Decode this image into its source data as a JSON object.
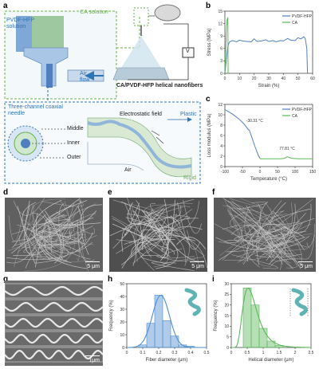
{
  "panel_letters": {
    "a": "a",
    "b": "b",
    "c": "c",
    "d": "d",
    "e": "e",
    "f": "f",
    "g": "g",
    "h": "h",
    "i": "i"
  },
  "panel_a": {
    "pvdf_label": "PVDF-HFP solution",
    "ca_label": "CA solution",
    "air_flow_label": "Air flow",
    "fiber_label": "CA/PVDF-HFP helical nanofibers",
    "voltage_label": "V",
    "needle_label": "Three-channel coaxial needle",
    "middle_label": "Middle",
    "inner_label": "Inner",
    "outer_label": "Outer",
    "field_label": "Electrostatic field",
    "plastic_label": "Plastic",
    "rigid_label": "Rigid",
    "air_label": "Air"
  },
  "colors": {
    "pvdf": "#4f7fc0",
    "ca": "#5db85d",
    "dashed_green": "#6ab04c",
    "dashed_blue": "#2e75b6"
  },
  "scalebars": {
    "d": "5 μm",
    "e": "5 μm",
    "f": "5 μm",
    "g": "1μm"
  },
  "chart_data": [
    {
      "id": "b",
      "type": "line",
      "xlabel": "Strain (%)",
      "ylabel": "Stress (MPa)",
      "xlim": [
        0,
        60
      ],
      "ylim": [
        0,
        15
      ],
      "xticks": [
        0,
        10,
        20,
        30,
        40,
        50,
        60
      ],
      "yticks": [
        0,
        3,
        6,
        9,
        12,
        15
      ],
      "legend": "top-right",
      "series": [
        {
          "name": "PVDF-HFP",
          "x": [
            0,
            1.2,
            2,
            3,
            5,
            8,
            10,
            12,
            15,
            18,
            20,
            22,
            25,
            28,
            30,
            33,
            35,
            38,
            40,
            43,
            45,
            48,
            50,
            52,
            54,
            55,
            56,
            56.5
          ],
          "y": [
            0,
            4,
            6.5,
            7.5,
            7.9,
            7.6,
            8.0,
            7.8,
            7.7,
            7.6,
            8.3,
            7.7,
            7.8,
            8.1,
            7.7,
            7.9,
            7.6,
            7.9,
            7.8,
            8.4,
            8.0,
            7.9,
            8.6,
            8.3,
            8.8,
            8.4,
            6.0,
            0
          ]
        },
        {
          "name": "CA",
          "x": [
            0,
            0.5,
            1,
            1.5,
            2,
            2.2
          ],
          "y": [
            0,
            5,
            10,
            13,
            13.5,
            0
          ]
        }
      ]
    },
    {
      "id": "c",
      "type": "line",
      "xlabel": "Temperature (°C)",
      "ylabel": "Loss modulus (MPa)",
      "xlim": [
        -100,
        150
      ],
      "ylim": [
        0,
        12
      ],
      "xticks": [
        -100,
        -50,
        0,
        50,
        100,
        150
      ],
      "yticks": [
        0,
        2,
        4,
        6,
        8,
        10,
        12
      ],
      "annotations": [
        {
          "text": "-30.31 °C",
          "x": -30.31
        },
        {
          "text": "77.81 °C",
          "x": 77.81
        }
      ],
      "legend": "top-right",
      "series": [
        {
          "name": "PVDF-HFP",
          "x": [
            -100,
            -80,
            -60,
            -45,
            -35,
            -30.31,
            -25,
            -15,
            -5,
            0
          ],
          "y": [
            11,
            10.2,
            9.2,
            8.2,
            7.3,
            7.0,
            6.0,
            4.0,
            2.2,
            1.6
          ]
        },
        {
          "name": "CA",
          "x": [
            0,
            20,
            40,
            60,
            70,
            77.81,
            90,
            110,
            130,
            150
          ],
          "y": [
            1.5,
            1.5,
            1.5,
            1.5,
            1.6,
            1.9,
            1.6,
            1.5,
            1.5,
            1.5
          ]
        }
      ]
    },
    {
      "id": "h",
      "type": "bar",
      "xlabel": "Fiber diameter (μm)",
      "ylabel": "Frequency (%)",
      "xlim": [
        0,
        0.5
      ],
      "ylim": [
        0,
        50
      ],
      "xticks": [
        0,
        0.1,
        0.2,
        0.3,
        0.4,
        0.5
      ],
      "yticks": [
        0,
        10,
        20,
        30,
        40,
        50
      ],
      "bin_width": 0.05,
      "bins": [
        0.1,
        0.15,
        0.2,
        0.25,
        0.3,
        0.35,
        0.4
      ],
      "values": [
        2,
        19,
        41,
        21,
        9,
        2,
        1
      ],
      "fit": "gaussian"
    },
    {
      "id": "i",
      "type": "bar",
      "xlabel": "Helical diameter (μm)",
      "ylabel": "Frequency (%)",
      "xlim": [
        0,
        2.5
      ],
      "ylim": [
        0,
        30
      ],
      "xticks": [
        0,
        0.5,
        1.0,
        1.5,
        2.0,
        2.5
      ],
      "yticks": [
        0,
        5,
        10,
        15,
        20,
        25,
        30
      ],
      "bin_width": 0.25,
      "bins": [
        0.5,
        0.75,
        1.0,
        1.25,
        1.5
      ],
      "values": [
        28,
        20,
        9,
        3,
        1
      ],
      "fit": "lognormal"
    }
  ]
}
